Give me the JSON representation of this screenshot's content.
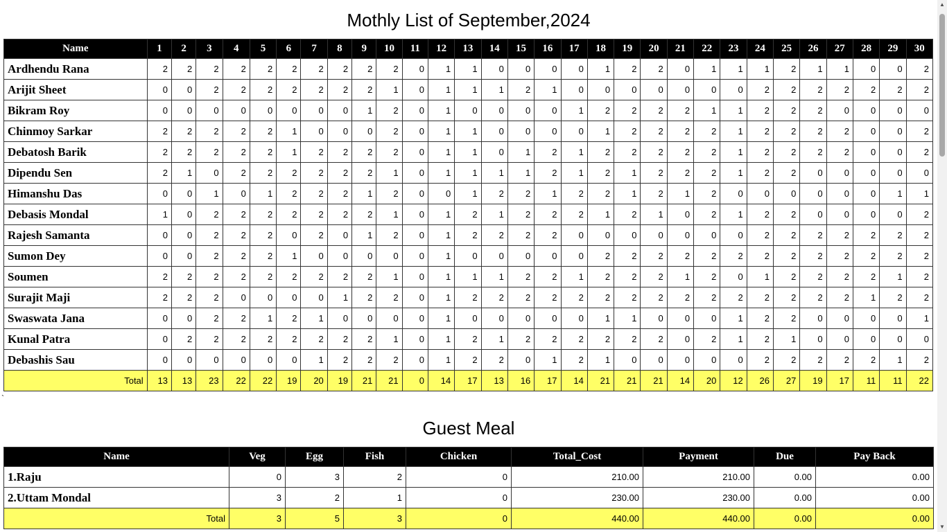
{
  "monthly": {
    "title": "Mothly List of September,2024",
    "name_header": "Name",
    "days": [
      "1",
      "2",
      "3",
      "4",
      "5",
      "6",
      "7",
      "8",
      "9",
      "10",
      "11",
      "12",
      "13",
      "14",
      "15",
      "16",
      "17",
      "18",
      "19",
      "20",
      "21",
      "22",
      "23",
      "24",
      "25",
      "26",
      "27",
      "28",
      "29",
      "30"
    ],
    "rows": [
      {
        "name": "Ardhendu Rana",
        "values": [
          2,
          2,
          2,
          2,
          2,
          2,
          2,
          2,
          2,
          2,
          0,
          1,
          1,
          0,
          0,
          0,
          0,
          1,
          2,
          2,
          0,
          1,
          1,
          1,
          2,
          1,
          1,
          0,
          0,
          2
        ]
      },
      {
        "name": "Arijit Sheet",
        "values": [
          0,
          0,
          2,
          2,
          2,
          2,
          2,
          2,
          2,
          1,
          0,
          1,
          1,
          1,
          2,
          1,
          0,
          0,
          0,
          0,
          0,
          0,
          0,
          2,
          2,
          2,
          2,
          2,
          2,
          2
        ]
      },
      {
        "name": "Bikram Roy",
        "values": [
          0,
          0,
          0,
          0,
          0,
          0,
          0,
          0,
          1,
          2,
          0,
          1,
          0,
          0,
          0,
          0,
          1,
          2,
          2,
          2,
          2,
          1,
          1,
          2,
          2,
          2,
          0,
          0,
          0,
          0
        ]
      },
      {
        "name": "Chinmoy Sarkar",
        "values": [
          2,
          2,
          2,
          2,
          2,
          1,
          0,
          0,
          0,
          2,
          0,
          1,
          1,
          0,
          0,
          0,
          0,
          1,
          2,
          2,
          2,
          2,
          1,
          2,
          2,
          2,
          2,
          0,
          0,
          2
        ]
      },
      {
        "name": "Debatosh Barik",
        "values": [
          2,
          2,
          2,
          2,
          2,
          1,
          2,
          2,
          2,
          2,
          0,
          1,
          1,
          0,
          1,
          2,
          1,
          2,
          2,
          2,
          2,
          2,
          1,
          2,
          2,
          2,
          2,
          0,
          0,
          2
        ]
      },
      {
        "name": "Dipendu Sen",
        "values": [
          2,
          1,
          0,
          2,
          2,
          2,
          2,
          2,
          2,
          1,
          0,
          1,
          1,
          1,
          1,
          2,
          1,
          2,
          1,
          2,
          2,
          2,
          1,
          2,
          2,
          0,
          0,
          0,
          0,
          0
        ]
      },
      {
        "name": "Himanshu Das",
        "values": [
          0,
          0,
          1,
          0,
          1,
          2,
          2,
          2,
          1,
          2,
          0,
          0,
          1,
          2,
          2,
          1,
          2,
          2,
          1,
          2,
          1,
          2,
          0,
          0,
          0,
          0,
          0,
          0,
          1,
          1
        ]
      },
      {
        "name": "Debasis Mondal",
        "values": [
          1,
          0,
          2,
          2,
          2,
          2,
          2,
          2,
          2,
          1,
          0,
          1,
          2,
          1,
          2,
          2,
          2,
          1,
          2,
          1,
          0,
          2,
          1,
          2,
          2,
          0,
          0,
          0,
          0,
          2
        ]
      },
      {
        "name": "Rajesh Samanta",
        "values": [
          0,
          0,
          2,
          2,
          2,
          0,
          2,
          0,
          1,
          2,
          0,
          1,
          2,
          2,
          2,
          2,
          0,
          0,
          0,
          0,
          0,
          0,
          0,
          2,
          2,
          2,
          2,
          2,
          2,
          2
        ]
      },
      {
        "name": "Sumon Dey",
        "values": [
          0,
          0,
          2,
          2,
          2,
          1,
          0,
          0,
          0,
          0,
          0,
          1,
          0,
          0,
          0,
          0,
          0,
          2,
          2,
          2,
          2,
          2,
          2,
          2,
          2,
          2,
          2,
          2,
          2,
          2
        ]
      },
      {
        "name": "Soumen",
        "values": [
          2,
          2,
          2,
          2,
          2,
          2,
          2,
          2,
          2,
          1,
          0,
          1,
          1,
          1,
          2,
          2,
          1,
          2,
          2,
          2,
          1,
          2,
          0,
          1,
          2,
          2,
          2,
          2,
          1,
          2
        ]
      },
      {
        "name": "Surajit Maji",
        "values": [
          2,
          2,
          2,
          0,
          0,
          0,
          0,
          1,
          2,
          2,
          0,
          1,
          2,
          2,
          2,
          2,
          2,
          2,
          2,
          2,
          2,
          2,
          2,
          2,
          2,
          2,
          2,
          1,
          2,
          2
        ]
      },
      {
        "name": "Swaswata Jana",
        "values": [
          0,
          0,
          2,
          2,
          1,
          2,
          1,
          0,
          0,
          0,
          0,
          1,
          0,
          0,
          0,
          0,
          0,
          1,
          1,
          0,
          0,
          0,
          1,
          2,
          2,
          0,
          0,
          0,
          0,
          1
        ]
      },
      {
        "name": "Kunal Patra",
        "values": [
          0,
          2,
          2,
          2,
          2,
          2,
          2,
          2,
          2,
          1,
          0,
          1,
          2,
          1,
          2,
          2,
          2,
          2,
          2,
          2,
          0,
          2,
          1,
          2,
          1,
          0,
          0,
          0,
          0,
          0
        ]
      },
      {
        "name": "Debashis Sau",
        "values": [
          0,
          0,
          0,
          0,
          0,
          0,
          1,
          2,
          2,
          2,
          0,
          1,
          2,
          2,
          0,
          1,
          2,
          1,
          0,
          0,
          0,
          0,
          0,
          2,
          2,
          2,
          2,
          2,
          1,
          2
        ]
      }
    ],
    "total_label": "Total",
    "totals": [
      13,
      13,
      23,
      22,
      22,
      19,
      20,
      19,
      21,
      21,
      0,
      14,
      17,
      13,
      16,
      17,
      14,
      21,
      21,
      21,
      14,
      20,
      12,
      26,
      27,
      19,
      17,
      11,
      11,
      22
    ]
  },
  "backtick": "`",
  "guest": {
    "title": "Guest Meal",
    "headers": [
      "Name",
      "Veg",
      "Egg",
      "Fish",
      "Chicken",
      "Total_Cost",
      "Payment",
      "Due",
      "Pay Back"
    ],
    "rows": [
      {
        "name": "1.Raju",
        "values": [
          "0",
          "3",
          "2",
          "0",
          "210.00",
          "210.00",
          "0.00",
          "0.00"
        ]
      },
      {
        "name": "2.Uttam Mondal",
        "values": [
          "3",
          "2",
          "1",
          "0",
          "230.00",
          "230.00",
          "0.00",
          "0.00"
        ]
      }
    ],
    "total_label": "Total",
    "totals": [
      "3",
      "5",
      "3",
      "0",
      "440.00",
      "440.00",
      "0.00",
      "0.00"
    ]
  },
  "scrollbar": {
    "up_icon": "▲",
    "down_icon": "▼"
  }
}
